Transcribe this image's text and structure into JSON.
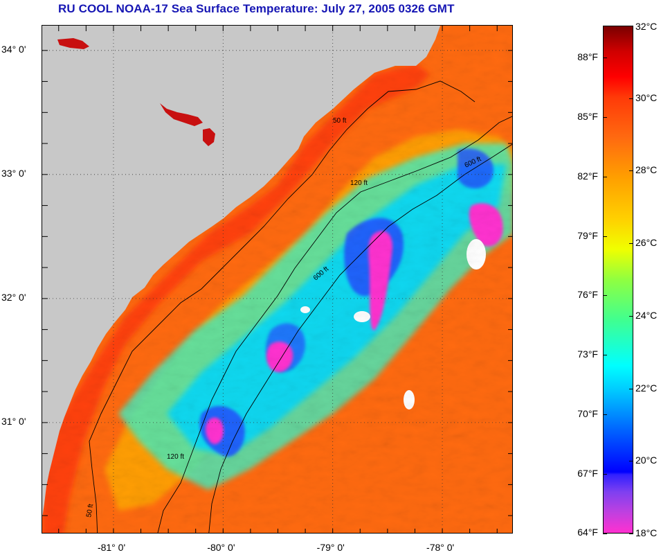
{
  "title": "RU COOL  NOAA-17  Sea Surface Temperature:  July 27, 2005 0326 GMT",
  "map": {
    "lat_labels": [
      {
        "value": 34,
        "label": "34° 0'"
      },
      {
        "value": 33,
        "label": "33° 0'"
      },
      {
        "value": 32,
        "label": "32° 0'"
      },
      {
        "value": 31,
        "label": "31° 0'"
      }
    ],
    "lon_labels": [
      {
        "value": -81,
        "label": "-81° 0'"
      },
      {
        "value": -80,
        "label": "-80° 0'"
      },
      {
        "value": -79,
        "label": "-79° 0'"
      },
      {
        "value": -78,
        "label": "-78° 0'"
      }
    ],
    "lat_range": [
      30.1,
      34.2
    ],
    "lon_range": [
      -81.65,
      -77.35
    ],
    "contour_labels": [
      "50 ft",
      "120 ft",
      "600 ft"
    ],
    "colors": {
      "land": "#c8c8c8",
      "warm_water": "#ff6a10",
      "hot_water": "#ff2a08",
      "cool_water": "#00e0ff",
      "cold_water": "#ff30d0"
    }
  },
  "colorbar": {
    "fahrenheit": [
      {
        "value": 88,
        "label": "88°F"
      },
      {
        "value": 85,
        "label": "85°F"
      },
      {
        "value": 82,
        "label": "82°F"
      },
      {
        "value": 79,
        "label": "79°F"
      },
      {
        "value": 76,
        "label": "76°F"
      },
      {
        "value": 73,
        "label": "73°F"
      },
      {
        "value": 70,
        "label": "70°F"
      },
      {
        "value": 67,
        "label": "67°F"
      },
      {
        "value": 64,
        "label": "64°F"
      }
    ],
    "celsius": [
      {
        "value": 32,
        "label": "32°C"
      },
      {
        "value": 30,
        "label": "30°C"
      },
      {
        "value": 28,
        "label": "28°C"
      },
      {
        "value": 26,
        "label": "26°C"
      },
      {
        "value": 24,
        "label": "24°C"
      },
      {
        "value": 22,
        "label": "22°C"
      },
      {
        "value": 20,
        "label": "20°C"
      },
      {
        "value": 18,
        "label": "18°C"
      }
    ]
  }
}
